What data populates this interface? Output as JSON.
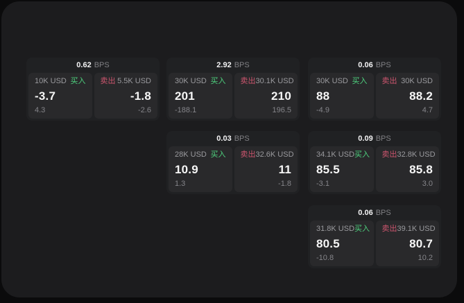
{
  "theme": {
    "page_bg": "#0b0b0c",
    "panel_bg": "#1c1c1e",
    "card_bg": "#202123",
    "subcard_bg": "#29292b",
    "text_primary": "#f6f6f6",
    "text_muted": "#9a9a9e",
    "text_faint": "#85858a",
    "buy_color": "#4ed17e",
    "sell_color": "#cc556e"
  },
  "labels": {
    "bps_unit": "BPS",
    "buy": "买入",
    "sell": "卖出"
  },
  "cards": [
    {
      "bps": "0.62",
      "buy": {
        "amount": "10K USD",
        "price": "-3.7",
        "delta": "4.3"
      },
      "sell": {
        "amount": "5.5K USD",
        "price": "-1.8",
        "delta": "-2.6"
      }
    },
    {
      "bps": "2.92",
      "buy": {
        "amount": "30K USD",
        "price": "201",
        "delta": "-188.1"
      },
      "sell": {
        "amount": "30.1K USD",
        "price": "210",
        "delta": "196.5"
      }
    },
    {
      "bps": "0.06",
      "buy": {
        "amount": "30K USD",
        "price": "88",
        "delta": "-4.9"
      },
      "sell": {
        "amount": "30K USD",
        "price": "88.2",
        "delta": "4.7"
      }
    },
    {
      "bps": "0.03",
      "buy": {
        "amount": "28K USD",
        "price": "10.9",
        "delta": "1.3"
      },
      "sell": {
        "amount": "32.6K USD",
        "price": "11",
        "delta": "-1.8"
      }
    },
    {
      "bps": "0.09",
      "buy": {
        "amount": "34.1K USD",
        "price": "85.5",
        "delta": "-3.1"
      },
      "sell": {
        "amount": "32.8K USD",
        "price": "85.8",
        "delta": "3.0"
      }
    },
    {
      "bps": "0.06",
      "buy": {
        "amount": "31.8K USD",
        "price": "80.5",
        "delta": "-10.8"
      },
      "sell": {
        "amount": "39.1K USD",
        "price": "80.7",
        "delta": "10.2"
      }
    }
  ]
}
